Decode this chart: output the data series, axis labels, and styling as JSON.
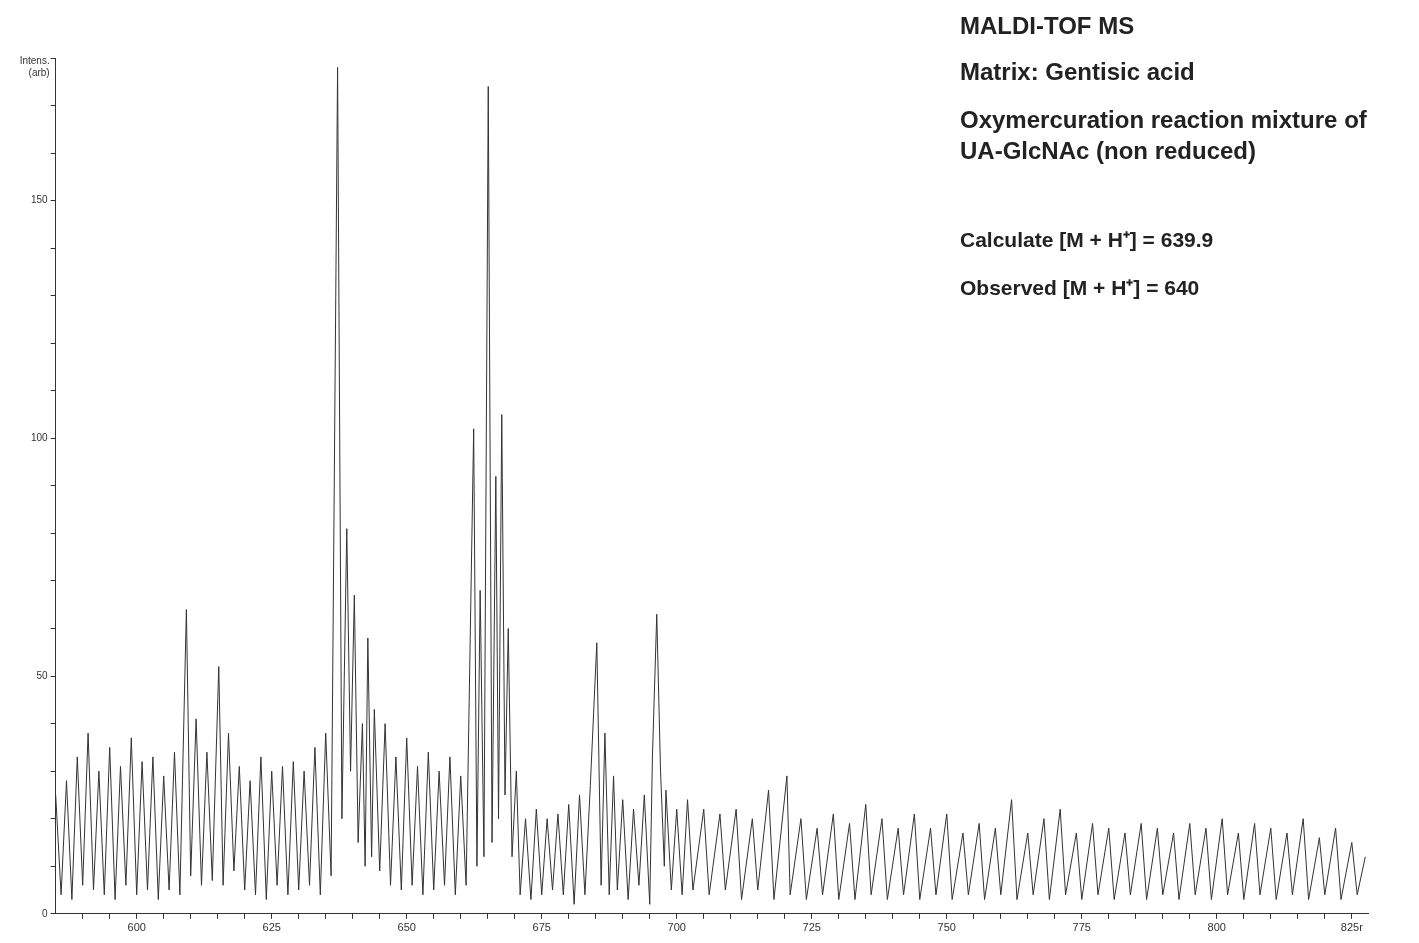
{
  "chart_data": {
    "type": "line",
    "title": "MALDI-TOF MS",
    "subtitle": "Matrix: Gentisic acid",
    "ylabel": "Intens. (arb)",
    "annotations": [
      "Oxymercuration reaction mixture of UA-GlcNAc (non reduced)",
      "Calculate [M + H⁺] = 639.9",
      "Observed [M + H⁺] = 640"
    ],
    "xlim": [
      585,
      828
    ],
    "xticks": [
      {
        "value": 590,
        "label": null
      },
      {
        "value": 595,
        "label": null
      },
      600,
      {
        "value": 605,
        "label": null
      },
      {
        "value": 610,
        "label": null
      },
      {
        "value": 615,
        "label": null
      },
      {
        "value": 620,
        "label": null
      },
      625,
      {
        "value": 630,
        "label": null
      },
      {
        "value": 635,
        "label": null
      },
      {
        "value": 640,
        "label": null
      },
      {
        "value": 645,
        "label": null
      },
      650,
      {
        "value": 655,
        "label": null
      },
      {
        "value": 660,
        "label": null
      },
      {
        "value": 665,
        "label": null
      },
      {
        "value": 670,
        "label": null
      },
      675,
      {
        "value": 680,
        "label": null
      },
      {
        "value": 685,
        "label": null
      },
      {
        "value": 690,
        "label": null
      },
      {
        "value": 695,
        "label": null
      },
      700,
      {
        "value": 705,
        "label": null
      },
      {
        "value": 710,
        "label": null
      },
      {
        "value": 715,
        "label": null
      },
      {
        "value": 720,
        "label": null
      },
      725,
      {
        "value": 730,
        "label": null
      },
      {
        "value": 735,
        "label": null
      },
      {
        "value": 740,
        "label": null
      },
      {
        "value": 745,
        "label": null
      },
      750,
      {
        "value": 755,
        "label": null
      },
      {
        "value": 760,
        "label": null
      },
      {
        "value": 765,
        "label": null
      },
      {
        "value": 770,
        "label": null
      },
      775,
      {
        "value": 780,
        "label": null
      },
      {
        "value": 785,
        "label": null
      },
      {
        "value": 790,
        "label": null
      },
      {
        "value": 795,
        "label": null
      },
      800,
      {
        "value": 805,
        "label": null
      },
      {
        "value": 810,
        "label": null
      },
      {
        "value": 815,
        "label": null
      },
      {
        "value": 820,
        "label": null
      },
      {
        "value": 825,
        "label": "825r"
      }
    ],
    "ylim": [
      0,
      180
    ],
    "yticks": [
      0,
      {
        "value": 10,
        "label": null
      },
      {
        "value": 20,
        "label": null
      },
      {
        "value": 30,
        "label": null
      },
      {
        "value": 40,
        "label": null
      },
      50,
      {
        "value": 60,
        "label": null
      },
      {
        "value": 70,
        "label": null
      },
      {
        "value": 80,
        "label": null
      },
      {
        "value": 90,
        "label": null
      },
      100,
      {
        "value": 110,
        "label": null
      },
      {
        "value": 120,
        "label": null
      },
      {
        "value": 130,
        "label": null
      },
      {
        "value": 140,
        "label": null
      },
      150,
      {
        "value": 160,
        "label": null
      },
      {
        "value": 170,
        "label": null
      },
      {
        "value": 180,
        "label": null
      }
    ],
    "grid": false,
    "legend": false,
    "marker": "none",
    "line_style": "solid",
    "series": [
      {
        "color": "#333333",
        "x": [
          585,
          586,
          587,
          588,
          589,
          590,
          591,
          592,
          593,
          594,
          595,
          596,
          597,
          598,
          599,
          600,
          601,
          602,
          603,
          604,
          605,
          606,
          607,
          608,
          609.2,
          610,
          611,
          612,
          613,
          614,
          615.2,
          616,
          617,
          618,
          619,
          620,
          621,
          622,
          623,
          624,
          625,
          626,
          627,
          628,
          629,
          630,
          631,
          632,
          633,
          634,
          635,
          636,
          637.2,
          638,
          638.9,
          639.6,
          640.3,
          641,
          641.8,
          642.3,
          642.8,
          643.5,
          644,
          645,
          646,
          647,
          648,
          649,
          650,
          651,
          652,
          653,
          654,
          655,
          656,
          657,
          658,
          659,
          660,
          661,
          662.4,
          663,
          663.6,
          664.3,
          665.1,
          665.8,
          666.5,
          667,
          667.6,
          668.2,
          668.8,
          669.5,
          670.3,
          671,
          672,
          673,
          674,
          675,
          676,
          677,
          678,
          679,
          680,
          681,
          682,
          683,
          684,
          685.2,
          686,
          686.7,
          687.5,
          688.3,
          689,
          690,
          691,
          692,
          693,
          694,
          695,
          695.5,
          696.3,
          697,
          697.7,
          698,
          699,
          700,
          701,
          702,
          703,
          705,
          706,
          708,
          709,
          711,
          712,
          714,
          715,
          717,
          718,
          720.4,
          721,
          723,
          724,
          726,
          727,
          729,
          730,
          732,
          733,
          735,
          736,
          738,
          739,
          741,
          742,
          744,
          745,
          747,
          748,
          750,
          751,
          753,
          754,
          756,
          757,
          759,
          760,
          762,
          763,
          765,
          766,
          768,
          769,
          771,
          772,
          774,
          775,
          777,
          778,
          780,
          781,
          783,
          784,
          786,
          787,
          789,
          790,
          792,
          793,
          795,
          796,
          798,
          799,
          801,
          802,
          804,
          805,
          807,
          808,
          810,
          811,
          813,
          814,
          816,
          817,
          819,
          820,
          822,
          823,
          825,
          826,
          827.5
        ],
        "values": [
          25,
          4,
          28,
          3,
          33,
          6,
          38,
          5,
          30,
          4,
          35,
          3,
          31,
          6,
          37,
          4,
          32,
          5,
          33,
          3,
          29,
          5,
          34,
          4,
          64,
          8,
          41,
          6,
          34,
          7,
          52,
          6,
          38,
          9,
          31,
          5,
          28,
          4,
          33,
          3,
          30,
          6,
          31,
          4,
          32,
          5,
          30,
          6,
          35,
          4,
          38,
          8,
          178,
          20,
          81,
          30,
          67,
          15,
          40,
          10,
          58,
          12,
          43,
          9,
          40,
          6,
          33,
          5,
          37,
          6,
          31,
          4,
          34,
          5,
          30,
          6,
          33,
          4,
          29,
          6,
          102,
          10,
          68,
          12,
          174,
          15,
          92,
          20,
          105,
          25,
          60,
          12,
          30,
          4,
          20,
          3,
          22,
          4,
          20,
          5,
          21,
          4,
          23,
          2,
          25,
          4,
          27,
          57,
          6,
          38,
          4,
          29,
          5,
          24,
          3,
          22,
          6,
          25,
          2,
          33,
          63,
          30,
          10,
          26,
          5,
          22,
          4,
          24,
          5,
          22,
          4,
          21,
          5,
          22,
          3,
          20,
          5,
          26,
          3,
          29,
          4,
          20,
          3,
          18,
          4,
          21,
          3,
          19,
          3,
          23,
          4,
          20,
          3,
          18,
          4,
          21,
          3,
          18,
          4,
          21,
          3,
          17,
          4,
          19,
          3,
          18,
          4,
          24,
          3,
          17,
          4,
          20,
          3,
          22,
          4,
          17,
          3,
          19,
          4,
          18,
          3,
          17,
          4,
          19,
          3,
          18,
          4,
          17,
          3,
          19,
          4,
          18,
          3,
          20,
          4,
          17,
          3,
          19,
          4,
          18,
          3,
          17,
          4,
          20,
          3,
          16,
          4,
          18,
          3,
          15,
          4,
          12
        ]
      }
    ]
  }
}
